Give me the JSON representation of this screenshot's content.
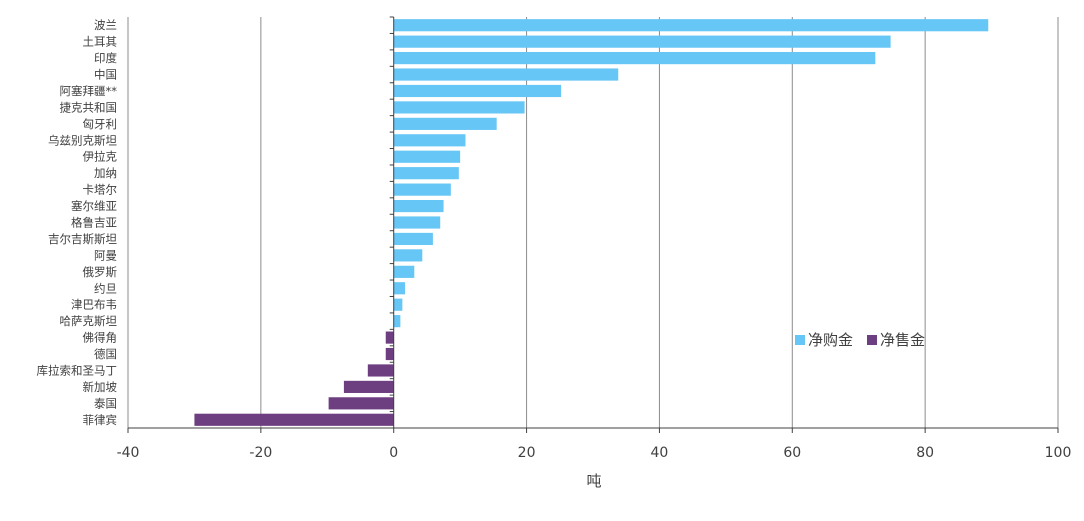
{
  "chart_data": {
    "type": "bar",
    "orientation": "horizontal",
    "categories": [
      "波兰",
      "土耳其",
      "印度",
      "中国",
      "阿塞拜疆**",
      "捷克共和国",
      "匈牙利",
      "乌兹别克斯坦",
      "伊拉克",
      "加纳",
      "卡塔尔",
      "塞尔维亚",
      "格鲁吉亚",
      "吉尔吉斯斯坦",
      "阿曼",
      "俄罗斯",
      "约旦",
      "津巴布韦",
      "哈萨克斯坦",
      "佛得角",
      "德国",
      "库拉索和圣马丁",
      "新加坡",
      "泰国",
      "菲律宾"
    ],
    "values": [
      89.5,
      74.8,
      72.5,
      33.8,
      25.2,
      19.7,
      15.5,
      10.8,
      10.0,
      9.8,
      8.6,
      7.5,
      7.0,
      5.9,
      4.3,
      3.1,
      1.7,
      1.3,
      1.0,
      -1.2,
      -1.2,
      -3.9,
      -7.5,
      -9.8,
      -30.0
    ],
    "xlabel": "吨",
    "ylabel": "",
    "title": "",
    "xlim": [
      -40,
      100
    ],
    "xticks": [
      -40,
      -20,
      0,
      20,
      40,
      60,
      80,
      100
    ],
    "grid": "vertical",
    "legend": {
      "placement": "right-middle",
      "items": [
        {
          "label": "净购金",
          "color": "#66c6f6"
        },
        {
          "label": "净售金",
          "color": "#6e3f80"
        }
      ]
    },
    "colors": {
      "positive": "#66c6f6",
      "negative": "#6e3f80"
    }
  }
}
